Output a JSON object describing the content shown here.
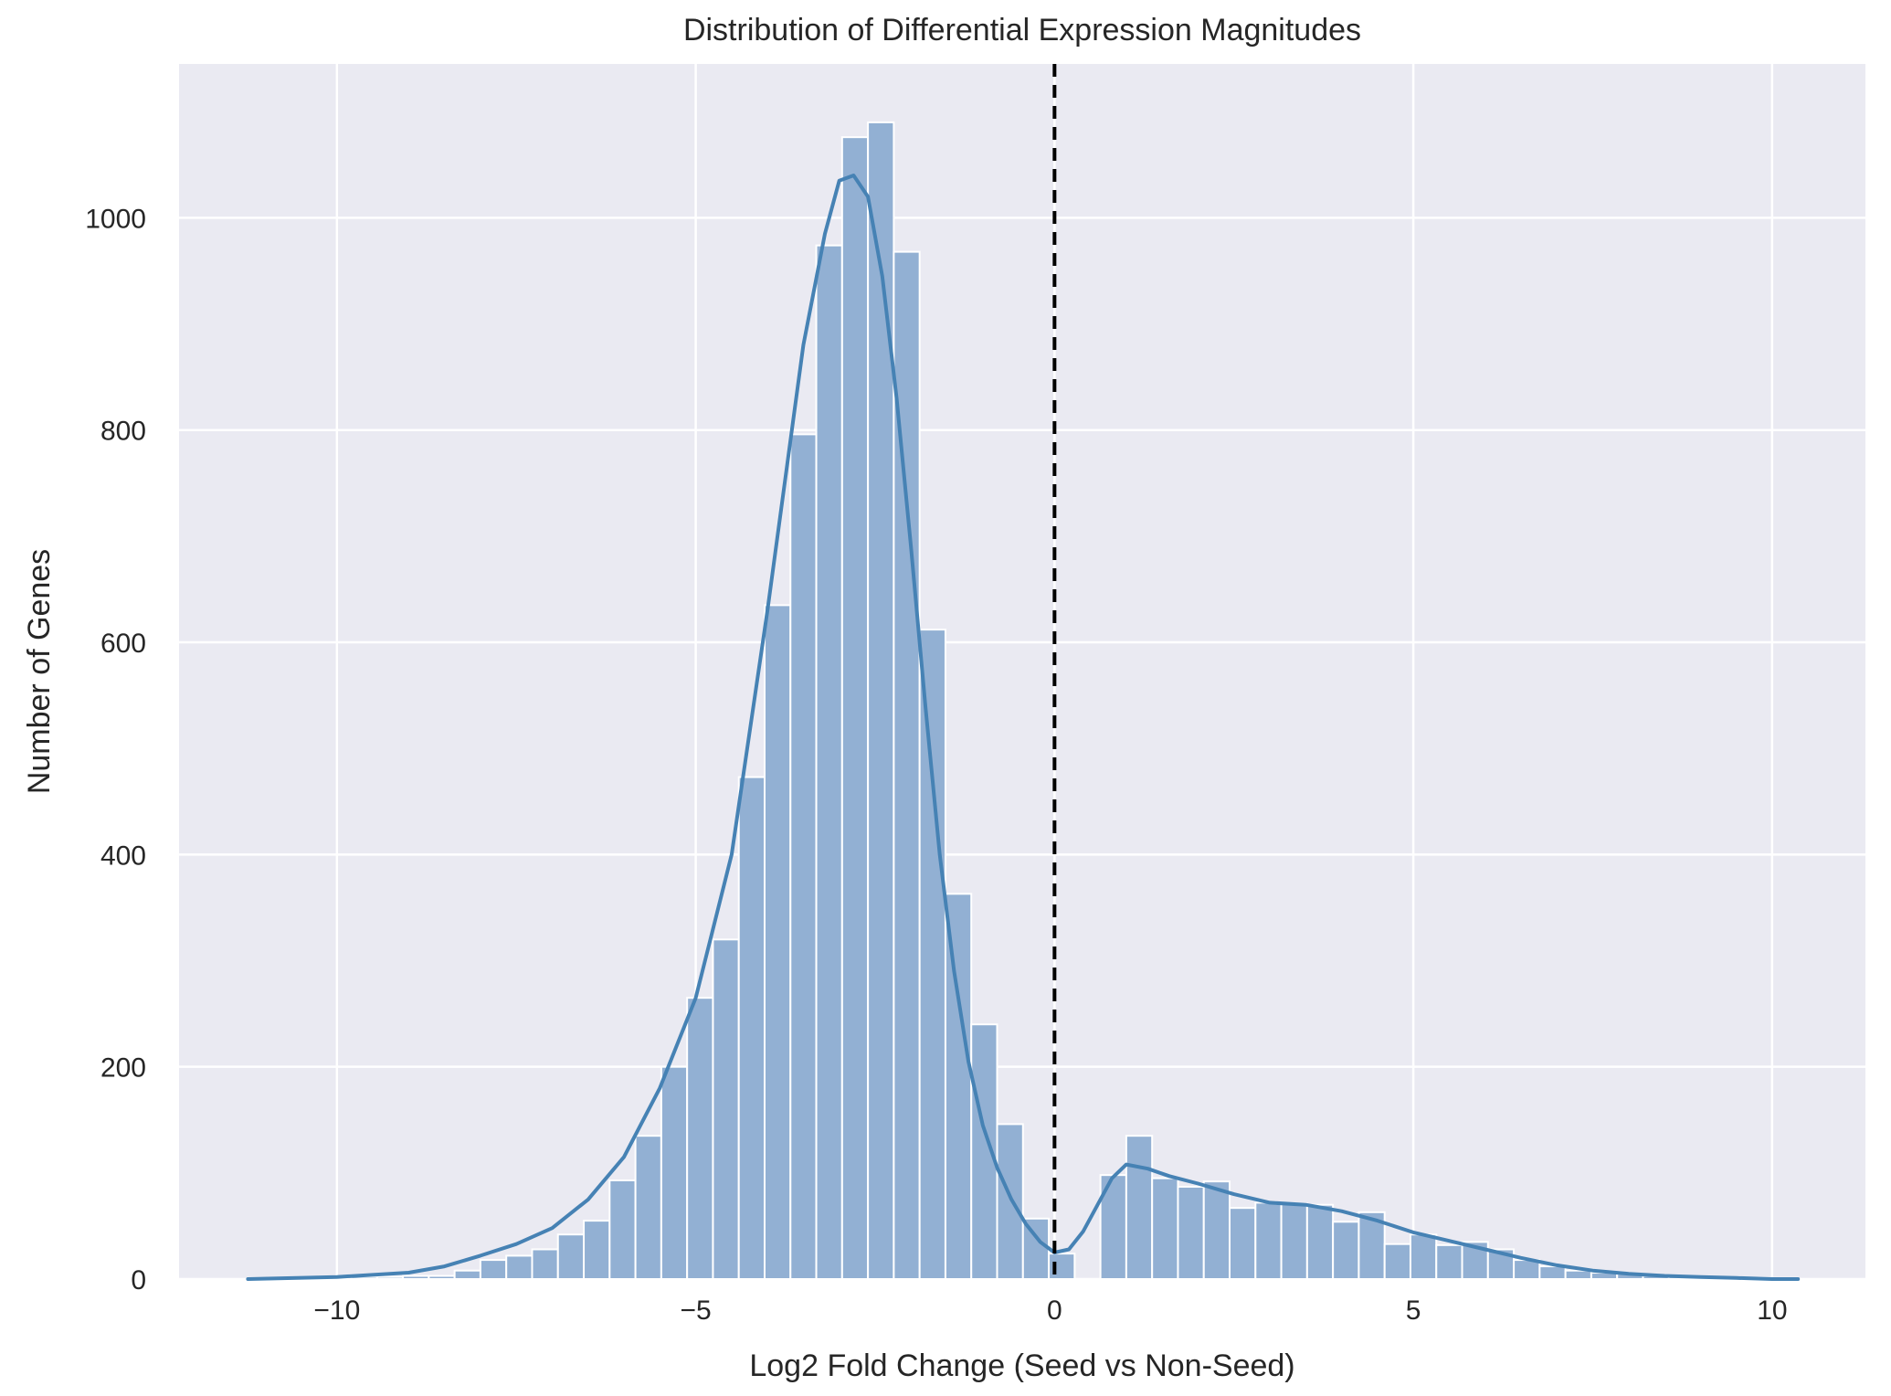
{
  "chart_data": {
    "type": "bar",
    "title": "Distribution of Differential Expression Magnitudes",
    "xlabel": "Log2 Fold Change (Seed vs Non-Seed)",
    "ylabel": "Number of Genes",
    "xlim": [
      -12.2,
      11.3
    ],
    "ylim": [
      0,
      1145
    ],
    "grid": true,
    "x_ticks": [
      -10,
      -5,
      0,
      5,
      10
    ],
    "x_tick_labels": [
      "−10",
      "−5",
      "0",
      "5",
      "10"
    ],
    "y_ticks": [
      0,
      200,
      400,
      600,
      800,
      1000
    ],
    "y_tick_labels": [
      "0",
      "200",
      "400",
      "600",
      "800",
      "1000"
    ],
    "histogram": {
      "bin_width": 0.36,
      "bin_starts": [
        -11.24,
        -10.88,
        -10.52,
        -10.16,
        -9.8,
        -9.44,
        -9.08,
        -8.72,
        -8.36,
        -8.0,
        -7.64,
        -7.28,
        -6.92,
        -6.56,
        -6.2,
        -5.84,
        -5.48,
        -5.12,
        -4.76,
        -4.4,
        -4.04,
        -3.68,
        -3.32,
        -2.96,
        -2.6,
        -2.24,
        -1.88,
        -1.52,
        -1.16,
        -0.8,
        -0.44,
        -0.08,
        0.28,
        0.64,
        1.0,
        1.36,
        1.72,
        2.08,
        2.44,
        2.8,
        3.16,
        3.52,
        3.88,
        4.24,
        4.6,
        4.96,
        5.32,
        5.68,
        6.04,
        6.4,
        6.76,
        7.12,
        7.48,
        7.84,
        8.2,
        8.56,
        8.92,
        9.28,
        9.64,
        10.0
      ],
      "counts": [
        1,
        1,
        1,
        1,
        2,
        2,
        3,
        3,
        8,
        18,
        22,
        28,
        42,
        55,
        93,
        135,
        200,
        265,
        320,
        473,
        635,
        796,
        974,
        1076,
        1090,
        968,
        612,
        363,
        240,
        146,
        57,
        24,
        0,
        98,
        135,
        95,
        87,
        92,
        67,
        72,
        71,
        70,
        54,
        63,
        33,
        42,
        32,
        35,
        28,
        18,
        12,
        8,
        6,
        5,
        3,
        2,
        2,
        1,
        1,
        1
      ],
      "color": "#92b0d3",
      "edge_color": "#ffffff"
    },
    "kde": {
      "color": "#4682b4",
      "x": [
        -11.24,
        -10.0,
        -9.0,
        -8.5,
        -8.0,
        -7.5,
        -7.0,
        -6.5,
        -6.0,
        -5.5,
        -5.0,
        -4.5,
        -4.0,
        -3.5,
        -3.2,
        -3.0,
        -2.8,
        -2.6,
        -2.4,
        -2.2,
        -2.0,
        -1.8,
        -1.6,
        -1.4,
        -1.2,
        -1.0,
        -0.8,
        -0.6,
        -0.4,
        -0.2,
        0.0,
        0.2,
        0.4,
        0.6,
        0.8,
        1.0,
        1.3,
        1.6,
        2.0,
        2.5,
        3.0,
        3.5,
        4.0,
        4.5,
        5.0,
        5.5,
        6.0,
        6.5,
        7.0,
        7.5,
        8.0,
        8.5,
        9.0,
        9.5,
        10.0,
        10.36
      ],
      "y": [
        0,
        2,
        6,
        12,
        22,
        33,
        48,
        75,
        115,
        180,
        265,
        400,
        630,
        880,
        985,
        1035,
        1040,
        1020,
        945,
        830,
        690,
        540,
        400,
        290,
        205,
        145,
        105,
        75,
        52,
        35,
        25,
        28,
        45,
        70,
        95,
        108,
        104,
        97,
        90,
        80,
        72,
        70,
        64,
        55,
        44,
        36,
        28,
        20,
        13,
        8,
        5,
        3,
        2,
        1,
        0,
        0
      ]
    },
    "reference_line": {
      "x": 0,
      "style": "dashed",
      "color": "#000000"
    }
  }
}
